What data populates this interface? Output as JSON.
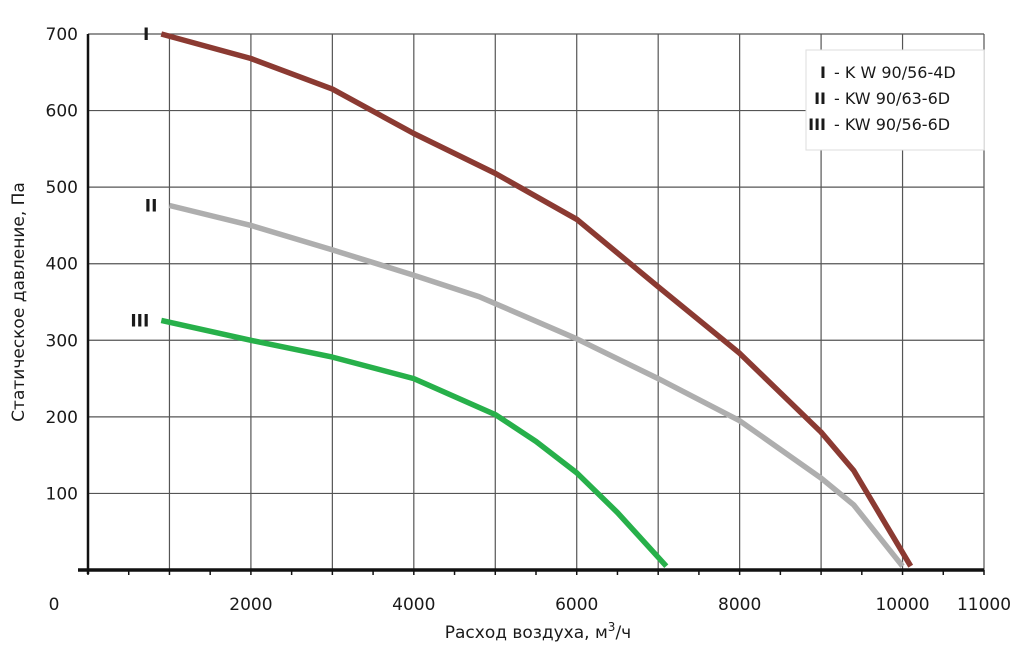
{
  "chart_data": {
    "type": "line",
    "xlabel": "Расход воздуха, м",
    "xlabel_sup": "3",
    "xlabel_suffix": "/ч",
    "ylabel": "Статическое давление, Па",
    "xlim": [
      0,
      11000
    ],
    "ylim": [
      0,
      700
    ],
    "x_tick_labels": [
      {
        "value": 0,
        "label": "0"
      },
      {
        "value": 2000,
        "label": "2000"
      },
      {
        "value": 4000,
        "label": "4000"
      },
      {
        "value": 6000,
        "label": "6000"
      },
      {
        "value": 8000,
        "label": "8000"
      },
      {
        "value": 10000,
        "label": "10000"
      },
      {
        "value": 11000,
        "label": "11000"
      }
    ],
    "y_ticks": [
      100,
      200,
      300,
      400,
      500,
      600,
      700
    ],
    "grid": true,
    "x_grid_step": 1000,
    "y_grid_step": 100,
    "legend_position": "top-right",
    "series": [
      {
        "name": "KW 90/56-4D",
        "numeral": "I",
        "legend_text": "- K W 90/56-4D",
        "color": "#8b3a32",
        "x": [
          900,
          2000,
          3000,
          4000,
          5000,
          6000,
          7000,
          8000,
          9000,
          9400,
          10100
        ],
        "y": [
          700,
          668,
          628,
          570,
          518,
          458,
          370,
          283,
          180,
          130,
          5
        ]
      },
      {
        "name": "KW 90/63-6D",
        "numeral": "II",
        "legend_text": "- KW 90/63-6D",
        "color": "#aeaeae",
        "x": [
          1000,
          2000,
          3000,
          4000,
          4800,
          6000,
          7000,
          8000,
          9000,
          9400,
          10000
        ],
        "y": [
          476,
          450,
          418,
          385,
          357,
          302,
          250,
          195,
          120,
          85,
          5
        ]
      },
      {
        "name": "KW 90/56-6D",
        "numeral": "III",
        "legend_text": "- KW 90/56-6D",
        "color": "#27b04a",
        "x": [
          900,
          2000,
          3000,
          4000,
          5000,
          5500,
          6000,
          6500,
          7100
        ],
        "y": [
          326,
          300,
          278,
          250,
          203,
          168,
          127,
          75,
          5
        ]
      }
    ]
  }
}
